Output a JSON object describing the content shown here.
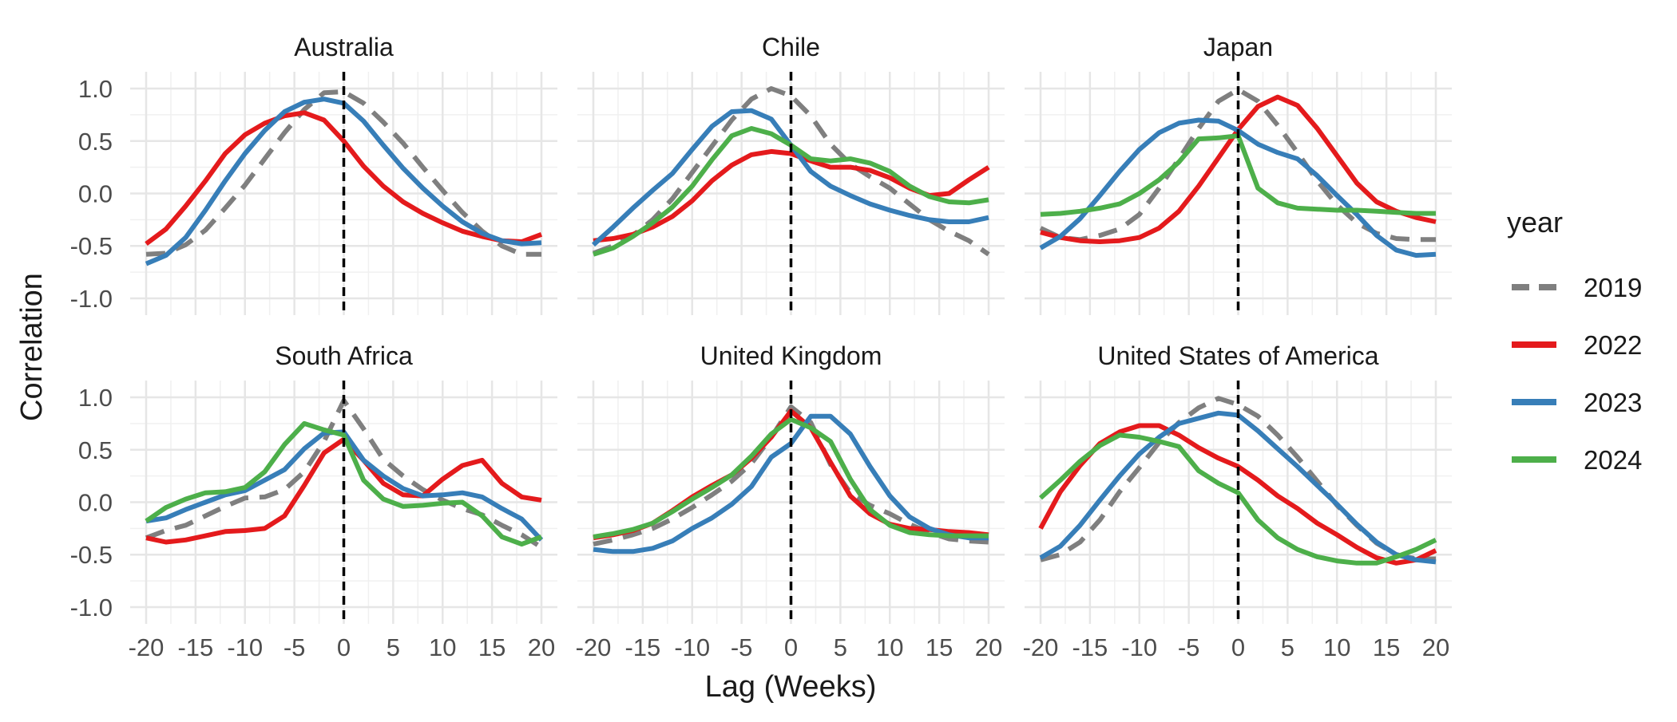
{
  "chart_data": {
    "type": "line",
    "facet_by": "country",
    "xlabel": "Lag (Weeks)",
    "ylabel": "Correlation",
    "xlim": [
      -20,
      20
    ],
    "ylim": [
      -1.0,
      1.0
    ],
    "x_ticks": [
      -20,
      -15,
      -10,
      -5,
      0,
      5,
      10,
      15,
      20
    ],
    "x_tick_labels": [
      "-20",
      "-15",
      "-10",
      "-5",
      "0",
      "5",
      "10",
      "15",
      "20"
    ],
    "y_ticks": [
      -1.0,
      -0.5,
      0.0,
      0.5,
      1.0
    ],
    "y_tick_labels": [
      "-1.0",
      "-0.5",
      "0.0",
      "0.5",
      "1.0"
    ],
    "reference_line_x": 0,
    "grid": true,
    "legend": {
      "title": "year",
      "placement": "right",
      "entries": [
        {
          "name": "2019",
          "color": "#7f7f7f",
          "dashed": true
        },
        {
          "name": "2022",
          "color": "#e41a1c",
          "dashed": false
        },
        {
          "name": "2023",
          "color": "#377eb8",
          "dashed": false
        },
        {
          "name": "2024",
          "color": "#4daf4a",
          "dashed": false
        }
      ]
    },
    "x": [
      -20,
      -18,
      -16,
      -14,
      -12,
      -10,
      -8,
      -6,
      -4,
      -2,
      0,
      2,
      4,
      6,
      8,
      10,
      12,
      14,
      16,
      18,
      20
    ],
    "panels": [
      {
        "title": "Australia",
        "series": [
          {
            "name": "2019",
            "values": [
              -0.58,
              -0.57,
              -0.49,
              -0.35,
              -0.14,
              0.08,
              0.33,
              0.58,
              0.8,
              0.96,
              0.97,
              0.86,
              0.68,
              0.48,
              0.25,
              0.03,
              -0.18,
              -0.36,
              -0.5,
              -0.58,
              -0.58
            ]
          },
          {
            "name": "2022",
            "values": [
              -0.48,
              -0.34,
              -0.12,
              0.12,
              0.38,
              0.56,
              0.67,
              0.74,
              0.77,
              0.7,
              0.5,
              0.26,
              0.07,
              -0.08,
              -0.19,
              -0.28,
              -0.36,
              -0.41,
              -0.45,
              -0.46,
              -0.39
            ]
          },
          {
            "name": "2023",
            "values": [
              -0.67,
              -0.59,
              -0.42,
              -0.16,
              0.12,
              0.38,
              0.6,
              0.78,
              0.87,
              0.9,
              0.86,
              0.69,
              0.46,
              0.24,
              0.05,
              -0.12,
              -0.27,
              -0.38,
              -0.45,
              -0.48,
              -0.47
            ]
          }
        ]
      },
      {
        "title": "Chile",
        "series": [
          {
            "name": "2019",
            "values": [
              -0.57,
              -0.5,
              -0.4,
              -0.25,
              -0.05,
              0.2,
              0.45,
              0.7,
              0.9,
              1.0,
              0.93,
              0.74,
              0.47,
              0.28,
              0.16,
              0.05,
              -0.1,
              -0.25,
              -0.36,
              -0.45,
              -0.58
            ]
          },
          {
            "name": "2022",
            "values": [
              -0.45,
              -0.43,
              -0.39,
              -0.32,
              -0.22,
              -0.07,
              0.12,
              0.27,
              0.37,
              0.4,
              0.38,
              0.31,
              0.25,
              0.25,
              0.22,
              0.15,
              0.05,
              -0.02,
              0.0,
              0.13,
              0.25
            ]
          },
          {
            "name": "2023",
            "values": [
              -0.49,
              -0.32,
              -0.14,
              0.03,
              0.19,
              0.42,
              0.64,
              0.78,
              0.79,
              0.71,
              0.46,
              0.21,
              0.07,
              -0.02,
              -0.1,
              -0.16,
              -0.21,
              -0.25,
              -0.27,
              -0.27,
              -0.23
            ]
          },
          {
            "name": "2024",
            "values": [
              -0.58,
              -0.52,
              -0.41,
              -0.28,
              -0.13,
              0.07,
              0.32,
              0.55,
              0.62,
              0.57,
              0.46,
              0.33,
              0.31,
              0.33,
              0.29,
              0.21,
              0.07,
              -0.03,
              -0.08,
              -0.09,
              -0.06
            ]
          }
        ]
      },
      {
        "title": "Japan",
        "series": [
          {
            "name": "2019",
            "values": [
              -0.33,
              -0.42,
              -0.44,
              -0.4,
              -0.34,
              -0.2,
              0.05,
              0.33,
              0.62,
              0.88,
              0.99,
              0.88,
              0.65,
              0.39,
              0.12,
              -0.11,
              -0.28,
              -0.38,
              -0.43,
              -0.44,
              -0.44
            ]
          },
          {
            "name": "2022",
            "values": [
              -0.37,
              -0.42,
              -0.45,
              -0.46,
              -0.45,
              -0.42,
              -0.33,
              -0.17,
              0.07,
              0.34,
              0.61,
              0.83,
              0.92,
              0.84,
              0.62,
              0.36,
              0.1,
              -0.08,
              -0.17,
              -0.23,
              -0.27
            ]
          },
          {
            "name": "2023",
            "values": [
              -0.52,
              -0.41,
              -0.24,
              -0.02,
              0.21,
              0.42,
              0.58,
              0.67,
              0.7,
              0.69,
              0.6,
              0.47,
              0.39,
              0.33,
              0.17,
              -0.02,
              -0.2,
              -0.4,
              -0.54,
              -0.59,
              -0.58
            ]
          },
          {
            "name": "2024",
            "values": [
              -0.2,
              -0.19,
              -0.17,
              -0.14,
              -0.1,
              0.0,
              0.13,
              0.3,
              0.52,
              0.53,
              0.55,
              0.05,
              -0.09,
              -0.14,
              -0.15,
              -0.16,
              -0.16,
              -0.17,
              -0.18,
              -0.19,
              -0.19
            ]
          }
        ]
      },
      {
        "title": "South Africa",
        "series": [
          {
            "name": "2019",
            "values": [
              -0.34,
              -0.27,
              -0.22,
              -0.13,
              -0.04,
              0.04,
              0.05,
              0.12,
              0.29,
              0.58,
              0.97,
              0.7,
              0.41,
              0.25,
              0.12,
              0.02,
              -0.06,
              -0.12,
              -0.22,
              -0.31,
              -0.43
            ]
          },
          {
            "name": "2022",
            "values": [
              -0.34,
              -0.38,
              -0.36,
              -0.32,
              -0.28,
              -0.27,
              -0.25,
              -0.13,
              0.16,
              0.47,
              0.6,
              0.4,
              0.18,
              0.07,
              0.06,
              0.22,
              0.35,
              0.4,
              0.18,
              0.05,
              0.02
            ]
          },
          {
            "name": "2023",
            "values": [
              -0.18,
              -0.15,
              -0.07,
              0.0,
              0.07,
              0.11,
              0.21,
              0.31,
              0.51,
              0.66,
              0.67,
              0.4,
              0.25,
              0.13,
              0.06,
              0.07,
              0.09,
              0.05,
              -0.06,
              -0.16,
              -0.36
            ]
          },
          {
            "name": "2024",
            "values": [
              -0.18,
              -0.05,
              0.03,
              0.09,
              0.1,
              0.14,
              0.29,
              0.55,
              0.75,
              0.69,
              0.64,
              0.21,
              0.03,
              -0.04,
              -0.03,
              -0.01,
              0.0,
              -0.13,
              -0.33,
              -0.4,
              -0.33
            ]
          }
        ]
      },
      {
        "title": "United Kingdom",
        "series": [
          {
            "name": "2019",
            "values": [
              -0.4,
              -0.36,
              -0.31,
              -0.25,
              -0.16,
              -0.05,
              0.07,
              0.2,
              0.37,
              0.62,
              0.91,
              0.76,
              0.36,
              0.09,
              -0.03,
              -0.11,
              -0.21,
              -0.29,
              -0.35,
              -0.37,
              -0.38
            ]
          },
          {
            "name": "2022",
            "values": [
              -0.34,
              -0.31,
              -0.27,
              -0.2,
              -0.08,
              0.05,
              0.16,
              0.26,
              0.42,
              0.62,
              0.87,
              0.71,
              0.38,
              0.06,
              -0.11,
              -0.21,
              -0.25,
              -0.26,
              -0.28,
              -0.29,
              -0.31
            ]
          },
          {
            "name": "2023",
            "values": [
              -0.45,
              -0.47,
              -0.47,
              -0.44,
              -0.37,
              -0.25,
              -0.15,
              -0.02,
              0.15,
              0.43,
              0.56,
              0.82,
              0.82,
              0.65,
              0.34,
              0.06,
              -0.14,
              -0.25,
              -0.31,
              -0.34,
              -0.34
            ]
          },
          {
            "name": "2024",
            "values": [
              -0.33,
              -0.3,
              -0.26,
              -0.2,
              -0.09,
              0.03,
              0.14,
              0.26,
              0.44,
              0.65,
              0.79,
              0.71,
              0.58,
              0.22,
              -0.07,
              -0.22,
              -0.29,
              -0.31,
              -0.32,
              -0.32,
              -0.32
            ]
          }
        ]
      },
      {
        "title": "United States of America",
        "series": [
          {
            "name": "2019",
            "values": [
              -0.55,
              -0.5,
              -0.38,
              -0.17,
              0.1,
              0.33,
              0.57,
              0.76,
              0.9,
              0.99,
              0.93,
              0.82,
              0.64,
              0.43,
              0.2,
              -0.03,
              -0.22,
              -0.39,
              -0.5,
              -0.54,
              -0.54
            ]
          },
          {
            "name": "2022",
            "values": [
              -0.25,
              0.1,
              0.35,
              0.56,
              0.67,
              0.73,
              0.73,
              0.64,
              0.52,
              0.42,
              0.34,
              0.21,
              0.06,
              -0.06,
              -0.2,
              -0.31,
              -0.43,
              -0.53,
              -0.58,
              -0.55,
              -0.46
            ]
          },
          {
            "name": "2023",
            "values": [
              -0.53,
              -0.42,
              -0.22,
              0.02,
              0.25,
              0.46,
              0.62,
              0.75,
              0.8,
              0.85,
              0.83,
              0.68,
              0.51,
              0.34,
              0.16,
              -0.02,
              -0.21,
              -0.38,
              -0.5,
              -0.55,
              -0.57
            ]
          },
          {
            "name": "2024",
            "values": [
              0.04,
              0.21,
              0.39,
              0.54,
              0.64,
              0.62,
              0.58,
              0.53,
              0.3,
              0.18,
              0.09,
              -0.17,
              -0.34,
              -0.45,
              -0.52,
              -0.56,
              -0.58,
              -0.58,
              -0.52,
              -0.45,
              -0.36
            ]
          }
        ]
      }
    ]
  }
}
